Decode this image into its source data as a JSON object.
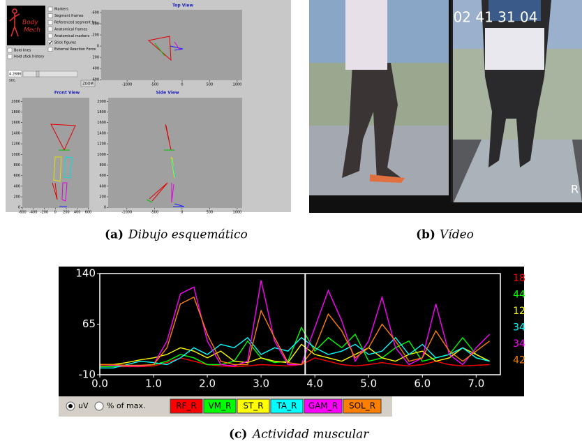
{
  "figure": {
    "panel_a": {
      "logo": [
        "Body",
        "Mech"
      ],
      "checkboxes": [
        {
          "label": "Markers",
          "checked": false
        },
        {
          "label": "Segment frames",
          "checked": false
        },
        {
          "label": "Referenced segment fra...",
          "checked": false
        },
        {
          "label": "Anatomical frames",
          "checked": false
        },
        {
          "label": "Anatomical markers",
          "checked": false
        },
        {
          "label": "Stick figures",
          "checked": true
        },
        {
          "label": "External Reaction Force",
          "checked": false
        }
      ],
      "options": [
        {
          "label": "Bold lines",
          "checked": false
        },
        {
          "label": "Hold stick history",
          "checked": false
        }
      ],
      "time_value": "4.2686",
      "time_unit": "sec.",
      "zoom_button": "ZOOM",
      "top_view": {
        "title": "Top View",
        "xlim": [
          -1470,
          1090
        ],
        "xticks": [
          -1000,
          -500,
          0,
          500,
          1000
        ],
        "ylim": [
          -650,
          610
        ],
        "y_inverted": true,
        "yticks": [
          -600,
          -400,
          -200,
          0,
          200,
          400,
          600
        ]
      },
      "front_view": {
        "title": "Front View",
        "xlim": [
          -600,
          620
        ],
        "xticks": [
          -600,
          -400,
          -200,
          0,
          200,
          400,
          600
        ],
        "ylim": [
          -10,
          2070
        ],
        "y_inverted": false,
        "yticks": [
          0,
          200,
          400,
          600,
          800,
          1000,
          1200,
          1400,
          1600,
          1800,
          2000
        ]
      },
      "side_view": {
        "title": "Side View",
        "xlim": [
          -1340,
          1090
        ],
        "xticks": [
          -1000,
          -500,
          0,
          500,
          1000
        ],
        "ylim": [
          -10,
          2070
        ],
        "y_inverted": false,
        "yticks": [
          0,
          200,
          400,
          600,
          800,
          1000,
          1200,
          1400,
          1600,
          1800,
          2000
        ]
      }
    },
    "caption_a": {
      "label": "(a)",
      "text": "Dibujo esquemático"
    },
    "panel_b": {
      "timestamp": "02 41 31 04",
      "marker": "R"
    },
    "caption_b": {
      "label": "(b)",
      "text": "Vídeo"
    },
    "panel_c": {
      "unit_options": [
        "uV",
        "% of max."
      ],
      "selected_unit": 0
    },
    "caption_c": {
      "label": "(c)",
      "text": "Actividad muscular"
    }
  },
  "chart_data": {
    "type": "line",
    "x": [
      0,
      0.25,
      0.5,
      0.75,
      1,
      1.25,
      1.5,
      1.75,
      2,
      2.25,
      2.5,
      2.75,
      3,
      3.25,
      3.5,
      3.75,
      4,
      4.25,
      4.5,
      4.75,
      5,
      5.25,
      5.5,
      5.75,
      6,
      6.25,
      6.5,
      6.75,
      7,
      7.25
    ],
    "xlim": [
      0,
      7.45
    ],
    "xticks": [
      {
        "value": 0,
        "label": "0.0"
      },
      {
        "value": 1,
        "label": "1.0"
      },
      {
        "value": 2,
        "label": "2.0"
      },
      {
        "value": 3,
        "label": "3.0"
      },
      {
        "value": 4,
        "label": "4.0"
      },
      {
        "value": 5,
        "label": "5.0"
      },
      {
        "value": 6,
        "label": "6.0"
      },
      {
        "value": 7,
        "label": "7.0"
      }
    ],
    "ylim": [
      -10,
      140
    ],
    "yticks": [
      -10,
      65,
      140
    ],
    "cursor_x": 3.82,
    "series": [
      {
        "name": "RF_R",
        "color": "#ff0000",
        "current_value": 18,
        "values": [
          3,
          2,
          2,
          2,
          3,
          8,
          15,
          10,
          5,
          3,
          2,
          3,
          5,
          4,
          3,
          5,
          15,
          10,
          5,
          3,
          5,
          8,
          5,
          3,
          5,
          10,
          5,
          3,
          4,
          5
        ]
      },
      {
        "name": "VM_R",
        "color": "#00ff00",
        "current_value": 44,
        "values": [
          2,
          2,
          3,
          3,
          5,
          10,
          20,
          15,
          5,
          5,
          10,
          40,
          15,
          8,
          10,
          60,
          25,
          45,
          30,
          50,
          10,
          15,
          30,
          40,
          10,
          15,
          20,
          45,
          20,
          10
        ]
      },
      {
        "name": "ST_R",
        "color": "#ffff00",
        "current_value": 12,
        "values": [
          5,
          5,
          8,
          12,
          15,
          20,
          30,
          25,
          15,
          25,
          10,
          8,
          15,
          10,
          8,
          35,
          20,
          15,
          10,
          20,
          30,
          15,
          10,
          20,
          25,
          10,
          15,
          30,
          20,
          10
        ]
      },
      {
        "name": "TA_R",
        "color": "#00ffff",
        "current_value": 34,
        "values": [
          0,
          0,
          5,
          10,
          8,
          5,
          15,
          30,
          20,
          35,
          30,
          45,
          20,
          30,
          25,
          45,
          30,
          20,
          25,
          35,
          20,
          25,
          45,
          20,
          35,
          15,
          20,
          30,
          15,
          10
        ]
      },
      {
        "name": "GAM_R",
        "color": "#ff00ff",
        "current_value": 34,
        "values": [
          5,
          4,
          3,
          3,
          5,
          40,
          110,
          120,
          40,
          5,
          3,
          10,
          130,
          40,
          5,
          5,
          60,
          115,
          70,
          10,
          40,
          105,
          30,
          5,
          15,
          95,
          20,
          5,
          30,
          50
        ]
      },
      {
        "name": "SOL_R",
        "color": "#ff8000",
        "current_value": 42,
        "values": [
          5,
          5,
          4,
          4,
          5,
          30,
          95,
          105,
          50,
          10,
          5,
          5,
          85,
          45,
          8,
          5,
          30,
          80,
          55,
          15,
          30,
          65,
          40,
          10,
          15,
          55,
          25,
          10,
          25,
          40
        ]
      }
    ]
  }
}
